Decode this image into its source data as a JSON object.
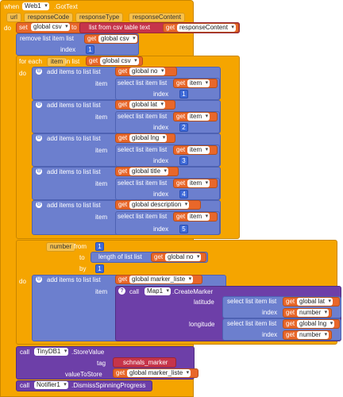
{
  "event": {
    "when": "when",
    "component": "Web1",
    "event_name": ".GotText",
    "params": [
      "url",
      "responseCode",
      "responseType",
      "responseContent"
    ]
  },
  "kw": {
    "do": "do",
    "set": "set",
    "to": "to",
    "get": "get",
    "index": "index",
    "item": "item",
    "list": "list",
    "for_each": "for each",
    "in_list": "in list",
    "number_kw": "from",
    "by": "by",
    "call": "call",
    "tag": "tag",
    "value_to_store": "valueToStore"
  },
  "blocks": {
    "set_var": "global csv",
    "list_from_csv": "list from csv table  text",
    "response_content": "responseContent",
    "remove_list_item": "remove list item  list",
    "global_csv": "global csv",
    "one": "1",
    "for_each_item": "item",
    "add_items": "add items to list  list",
    "select_list_item": "select list item  list",
    "global_no": "global no",
    "global_lat": "global lat",
    "global_lng": "global lng",
    "global_title": "global title",
    "global_description": "global description",
    "item_var": "item",
    "n1": "1",
    "n2": "2",
    "n3": "3",
    "n4": "4",
    "n5": "5",
    "for_each_number": "for each",
    "number_var": "number",
    "length_of_list": "length of list  list",
    "global_marker_liste": "global marker_liste",
    "map_comp": "Map1",
    "create_marker": ".CreateMarker",
    "latitude": "latitude",
    "longitude": "longitude",
    "number_get": "number",
    "tinydb": "TinyDB1",
    "store_value": ".StoreValue",
    "tag_value": "schnals_marker",
    "notifier": "Notifier1",
    "dismiss": ".DismissSpinningProgress"
  }
}
